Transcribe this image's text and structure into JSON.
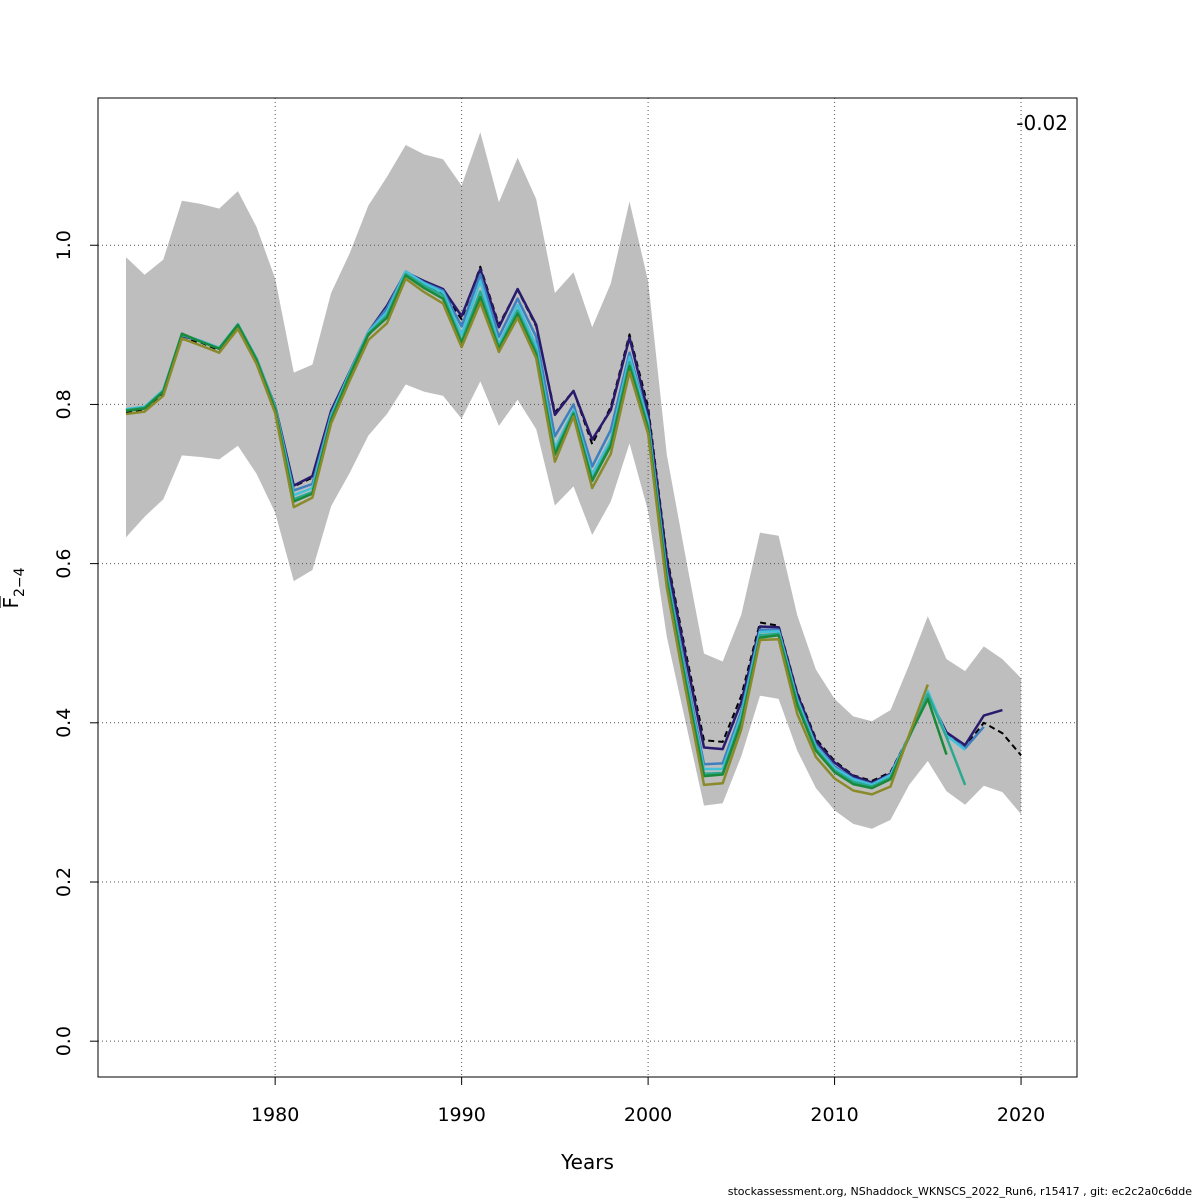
{
  "chart_data": {
    "type": "line",
    "xlabel": "Years",
    "ylabel_main": "F",
    "ylabel_sub": "2−4",
    "annotation": "-0.02",
    "xlim": [
      1970.5,
      2023
    ],
    "ylim": [
      -0.045,
      1.185
    ],
    "xticks": [
      1980,
      1990,
      2000,
      2010,
      2020
    ],
    "yticks": [
      0.0,
      0.2,
      0.4,
      0.6,
      0.8,
      1.0
    ],
    "ytick_labels": [
      "0.0",
      "0.2",
      "0.4",
      "0.6",
      "0.8",
      "1.0"
    ],
    "grid": true,
    "years": [
      1972,
      1973,
      1974,
      1975,
      1976,
      1977,
      1978,
      1979,
      1980,
      1981,
      1982,
      1983,
      1984,
      1985,
      1986,
      1987,
      1988,
      1989,
      1990,
      1991,
      1992,
      1993,
      1994,
      1995,
      1996,
      1997,
      1998,
      1999,
      2000,
      2001,
      2002,
      2003,
      2004,
      2005,
      2006,
      2007,
      2008,
      2009,
      2010,
      2011,
      2012,
      2013,
      2014,
      2015,
      2016,
      2017,
      2018,
      2019,
      2020
    ],
    "ci_upper": [
      0.985,
      0.963,
      0.982,
      1.056,
      1.052,
      1.046,
      1.068,
      1.023,
      0.958,
      0.84,
      0.85,
      0.94,
      0.99,
      1.05,
      1.086,
      1.126,
      1.114,
      1.108,
      1.075,
      1.142,
      1.054,
      1.11,
      1.058,
      0.94,
      0.966,
      0.897,
      0.952,
      1.055,
      0.955,
      0.737,
      0.61,
      0.487,
      0.477,
      0.536,
      0.639,
      0.635,
      0.535,
      0.467,
      0.43,
      0.408,
      0.402,
      0.416,
      0.473,
      0.534,
      0.48,
      0.465,
      0.496,
      0.48,
      0.456
    ],
    "ci_lower": [
      0.633,
      0.659,
      0.681,
      0.736,
      0.734,
      0.731,
      0.748,
      0.713,
      0.664,
      0.578,
      0.592,
      0.672,
      0.714,
      0.761,
      0.788,
      0.825,
      0.816,
      0.811,
      0.782,
      0.829,
      0.773,
      0.806,
      0.769,
      0.673,
      0.697,
      0.636,
      0.678,
      0.751,
      0.666,
      0.508,
      0.402,
      0.296,
      0.299,
      0.358,
      0.434,
      0.43,
      0.365,
      0.318,
      0.29,
      0.273,
      0.267,
      0.278,
      0.322,
      0.352,
      0.314,
      0.297,
      0.321,
      0.313,
      0.285
    ],
    "series": [
      {
        "color": "#000000",
        "dashed": true,
        "values": [
          0.79,
          0.793,
          0.815,
          0.882,
          0.878,
          0.868,
          0.895,
          0.853,
          0.797,
          0.697,
          0.708,
          0.788,
          0.839,
          0.887,
          0.912,
          0.962,
          0.95,
          0.94,
          0.907,
          0.973,
          0.9,
          0.944,
          0.898,
          0.79,
          0.817,
          0.75,
          0.797,
          0.888,
          0.797,
          0.61,
          0.491,
          0.378,
          0.376,
          0.434,
          0.526,
          0.522,
          0.438,
          0.38,
          0.352,
          0.334,
          0.327,
          0.338,
          0.384,
          0.436,
          0.387,
          0.37,
          0.4,
          0.387,
          0.359
        ]
      },
      {
        "color": "#2a1a6e",
        "dashed": false,
        "values": [
          0.792,
          0.795,
          0.817,
          0.886,
          0.88,
          0.87,
          0.9,
          0.857,
          0.798,
          0.698,
          0.71,
          0.792,
          0.841,
          0.891,
          0.924,
          0.966,
          0.955,
          0.945,
          0.911,
          0.97,
          0.897,
          0.945,
          0.9,
          0.787,
          0.817,
          0.756,
          0.793,
          0.884,
          0.79,
          0.605,
          0.484,
          0.369,
          0.367,
          0.426,
          0.521,
          0.52,
          0.436,
          0.377,
          0.35,
          0.333,
          0.325,
          0.336,
          0.383,
          0.435,
          0.388,
          0.372,
          0.409,
          0.416
        ]
      },
      {
        "color": "#3f7fbf",
        "dashed": false,
        "values": [
          0.793,
          0.796,
          0.818,
          0.887,
          0.88,
          0.871,
          0.9,
          0.858,
          0.797,
          0.692,
          0.7,
          0.788,
          0.84,
          0.891,
          0.921,
          0.967,
          0.953,
          0.943,
          0.898,
          0.963,
          0.885,
          0.933,
          0.885,
          0.76,
          0.8,
          0.722,
          0.768,
          0.865,
          0.78,
          0.59,
          0.466,
          0.348,
          0.349,
          0.415,
          0.517,
          0.517,
          0.43,
          0.372,
          0.345,
          0.33,
          0.323,
          0.335,
          0.383,
          0.436,
          0.384,
          0.368,
          0.395
        ]
      },
      {
        "color": "#44c0d8",
        "dashed": false,
        "values": [
          0.794,
          0.797,
          0.818,
          0.888,
          0.88,
          0.871,
          0.901,
          0.858,
          0.797,
          0.686,
          0.695,
          0.785,
          0.84,
          0.891,
          0.916,
          0.967,
          0.952,
          0.941,
          0.888,
          0.955,
          0.876,
          0.925,
          0.874,
          0.745,
          0.793,
          0.712,
          0.756,
          0.86,
          0.777,
          0.586,
          0.46,
          0.342,
          0.342,
          0.41,
          0.514,
          0.515,
          0.428,
          0.37,
          0.343,
          0.329,
          0.322,
          0.334,
          0.384,
          0.44,
          0.384,
          0.366
        ]
      },
      {
        "color": "#2aa890",
        "dashed": false,
        "values": [
          0.793,
          0.796,
          0.817,
          0.888,
          0.879,
          0.87,
          0.9,
          0.857,
          0.795,
          0.681,
          0.69,
          0.782,
          0.838,
          0.889,
          0.912,
          0.964,
          0.949,
          0.937,
          0.88,
          0.942,
          0.872,
          0.918,
          0.867,
          0.74,
          0.79,
          0.706,
          0.751,
          0.853,
          0.772,
          0.582,
          0.455,
          0.336,
          0.337,
          0.404,
          0.51,
          0.512,
          0.425,
          0.367,
          0.34,
          0.326,
          0.32,
          0.331,
          0.382,
          0.436,
          0.382,
          0.322
        ]
      },
      {
        "color": "#1a8a3a",
        "dashed": false,
        "values": [
          0.792,
          0.795,
          0.816,
          0.889,
          0.879,
          0.87,
          0.9,
          0.856,
          0.794,
          0.678,
          0.688,
          0.781,
          0.836,
          0.888,
          0.909,
          0.962,
          0.946,
          0.933,
          0.877,
          0.935,
          0.87,
          0.914,
          0.863,
          0.737,
          0.788,
          0.704,
          0.748,
          0.848,
          0.77,
          0.58,
          0.452,
          0.333,
          0.335,
          0.401,
          0.507,
          0.51,
          0.422,
          0.365,
          0.338,
          0.323,
          0.318,
          0.329,
          0.383,
          0.43,
          0.36
        ]
      },
      {
        "color": "#8a8a2a",
        "dashed": false,
        "values": [
          0.788,
          0.791,
          0.811,
          0.883,
          0.874,
          0.865,
          0.895,
          0.851,
          0.789,
          0.671,
          0.683,
          0.776,
          0.83,
          0.881,
          0.902,
          0.958,
          0.941,
          0.927,
          0.872,
          0.928,
          0.866,
          0.909,
          0.858,
          0.728,
          0.785,
          0.695,
          0.738,
          0.841,
          0.763,
          0.57,
          0.443,
          0.322,
          0.324,
          0.392,
          0.504,
          0.505,
          0.411,
          0.357,
          0.33,
          0.315,
          0.31,
          0.32,
          0.385,
          0.448
        ]
      }
    ]
  },
  "footer": "stockassessment.org, NShaddock_WKNSCS_2022_Run6, r15417 , git: ec2c2a0c6dde"
}
